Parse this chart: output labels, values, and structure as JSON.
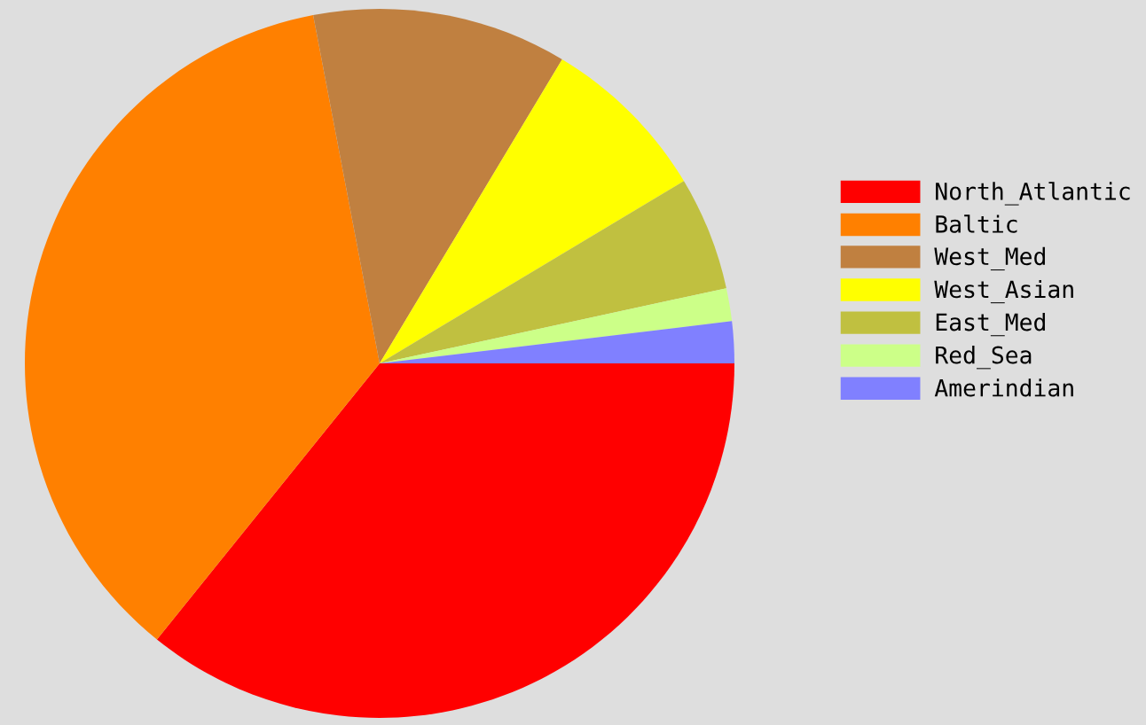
{
  "chart_data": {
    "type": "pie",
    "categories": [
      "North_Atlantic",
      "Baltic",
      "West_Med",
      "West_Asian",
      "East_Med",
      "Red_Sea",
      "Amerindian"
    ],
    "values": [
      35.8,
      36.2,
      11.6,
      7.8,
      5.2,
      1.5,
      1.9
    ],
    "colors": [
      "#ff0000",
      "#ff8000",
      "#c08040",
      "#ffff00",
      "#c0c040",
      "#ccff88",
      "#8080ff"
    ],
    "legend": "right"
  }
}
